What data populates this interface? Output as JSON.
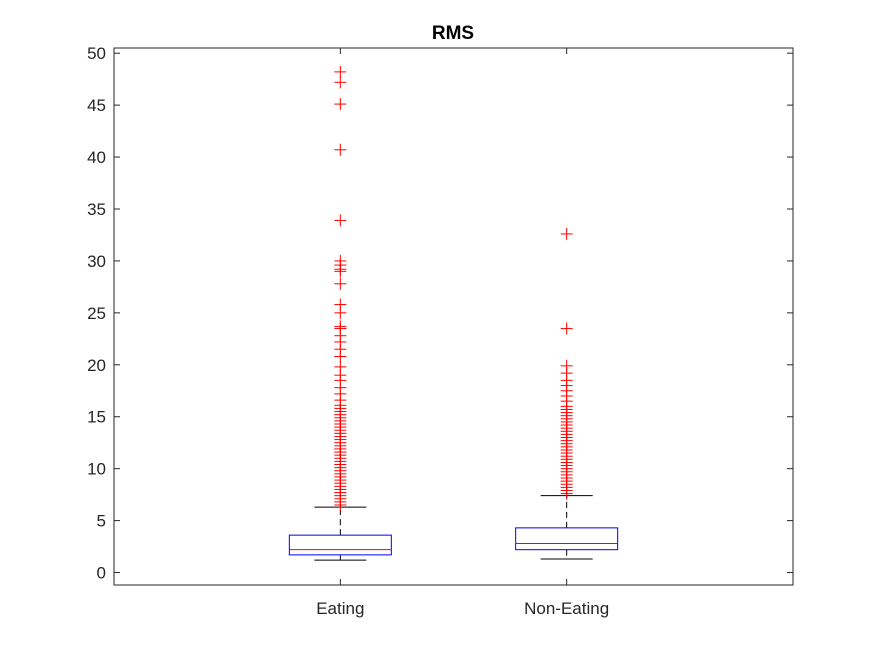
{
  "chart_data": {
    "type": "boxplot",
    "title": "RMS",
    "xlabel": "",
    "ylabel": "",
    "ylim": [
      -1.2,
      50.5
    ],
    "yticks": [
      0,
      5,
      10,
      15,
      20,
      25,
      30,
      35,
      40,
      45,
      50
    ],
    "grid": false,
    "colors": {
      "box": "#0000ff",
      "median": "#ff0000",
      "whisker": "#000000",
      "outlier": "#ff0000",
      "axis": "#262626"
    },
    "categories": [
      "Eating",
      "Non-Eating"
    ],
    "boxes": [
      {
        "category": "Eating",
        "whisker_low": 1.2,
        "q1": 1.7,
        "median": 2.2,
        "q3": 3.6,
        "whisker_high": 6.3,
        "outliers": [
          6.5,
          6.8,
          7.1,
          7.4,
          7.7,
          8.0,
          8.3,
          8.6,
          8.9,
          9.2,
          9.5,
          9.8,
          10.1,
          10.4,
          10.7,
          11.0,
          11.3,
          11.6,
          11.9,
          12.2,
          12.5,
          12.8,
          13.1,
          13.4,
          13.7,
          14.0,
          14.3,
          14.6,
          14.9,
          15.2,
          15.5,
          15.8,
          16.1,
          16.6,
          17.2,
          17.8,
          18.5,
          19.0,
          19.8,
          20.8,
          21.5,
          22.2,
          22.8,
          23.5,
          23.7,
          25.0,
          25.8,
          27.8,
          29.0,
          29.2,
          29.6,
          30.0,
          33.9,
          40.7,
          45.1,
          47.2,
          48.2
        ]
      },
      {
        "category": "Non-Eating",
        "whisker_low": 1.3,
        "q1": 2.2,
        "median": 2.8,
        "q3": 4.3,
        "whisker_high": 7.4,
        "outliers": [
          7.6,
          7.9,
          8.2,
          8.5,
          8.8,
          9.1,
          9.4,
          9.7,
          10.0,
          10.3,
          10.6,
          10.9,
          11.2,
          11.5,
          11.8,
          12.1,
          12.4,
          12.7,
          13.0,
          13.3,
          13.6,
          13.9,
          14.2,
          14.5,
          14.8,
          15.1,
          15.4,
          15.7,
          16.0,
          16.5,
          17.0,
          17.5,
          18.0,
          18.5,
          19.2,
          19.9,
          23.5,
          32.6
        ]
      }
    ]
  }
}
